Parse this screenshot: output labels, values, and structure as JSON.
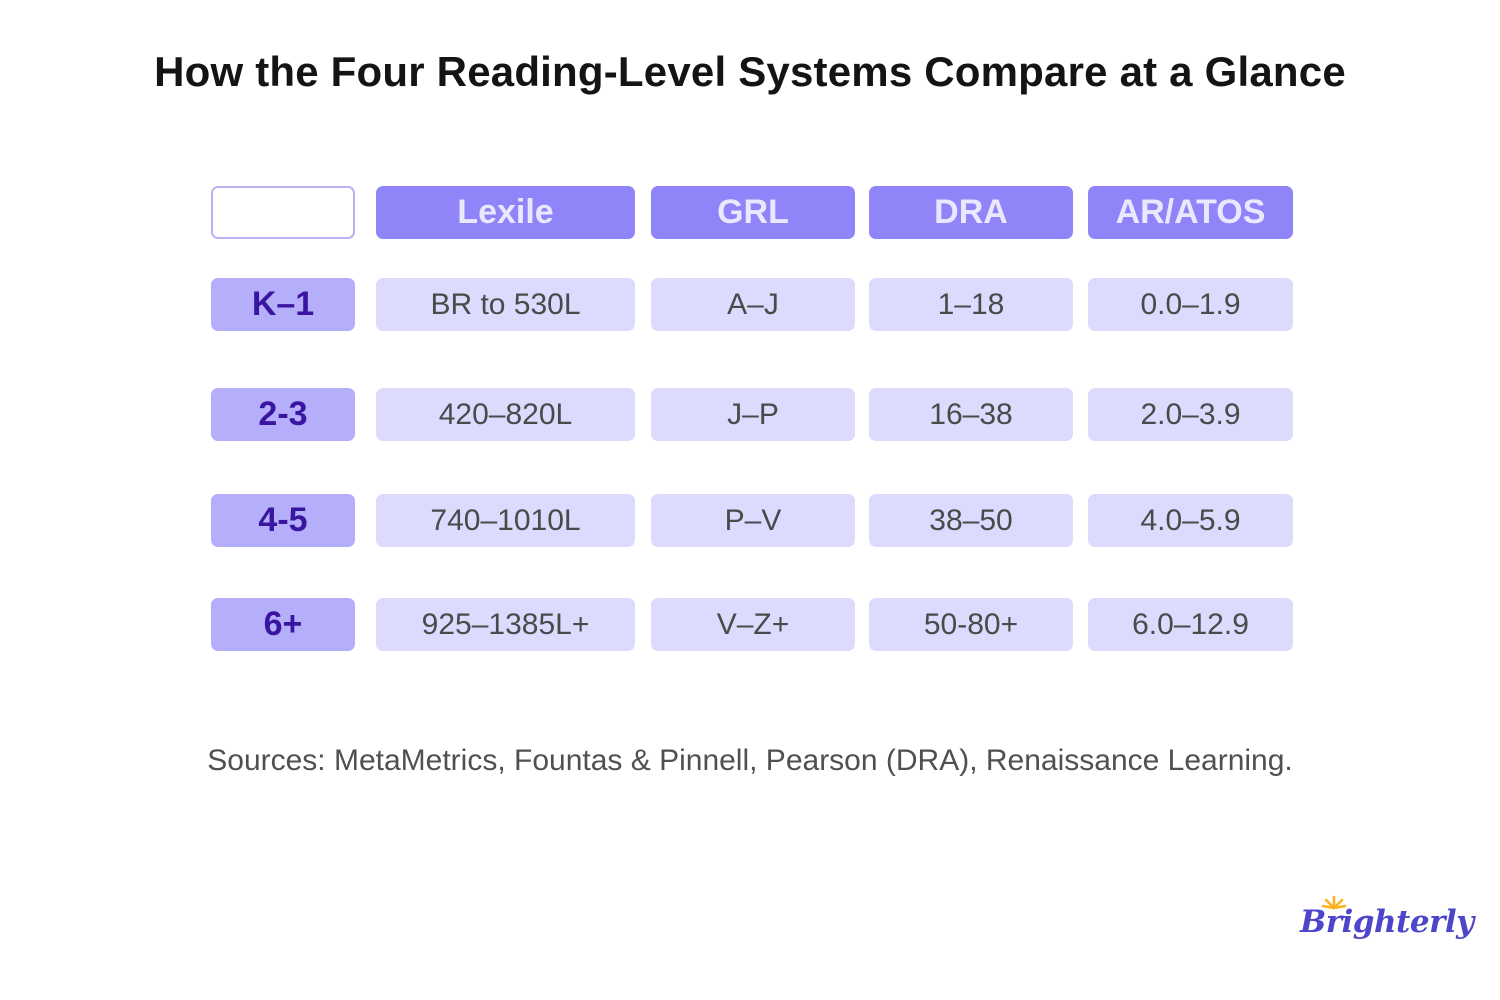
{
  "title": "How the Four Reading-Level Systems Compare at a Glance",
  "table": {
    "columns": [
      "Lexile",
      "GRL",
      "DRA",
      "AR/ATOS"
    ],
    "rows": [
      {
        "grade": "K–1",
        "values": [
          "BR to 530L",
          "A–J",
          "1–18",
          "0.0–1.9"
        ]
      },
      {
        "grade": "2-3",
        "values": [
          "420–820L",
          "J–P",
          "16–38",
          "2.0–3.9"
        ]
      },
      {
        "grade": "4-5",
        "values": [
          "740–1010L",
          "P–V",
          "38–50",
          "4.0–5.9"
        ]
      },
      {
        "grade": "6+",
        "values": [
          "925–1385L+",
          "V–Z+",
          "50-80+",
          "6.0–12.9"
        ]
      }
    ]
  },
  "sources": "Sources: MetaMetrics, Fountas & Pinnell, Pearson (DRA), Renaissance Learning.",
  "logo": {
    "text": "Brighterly",
    "icon": "sun-icon",
    "text_color": "#4e46c8",
    "sun_color": "#f7b21f"
  },
  "colors": {
    "header_bg": "#9085f8",
    "grade_bg": "#b4aefb",
    "cell_bg": "#dcdbfe",
    "grade_text": "#3a159f"
  }
}
